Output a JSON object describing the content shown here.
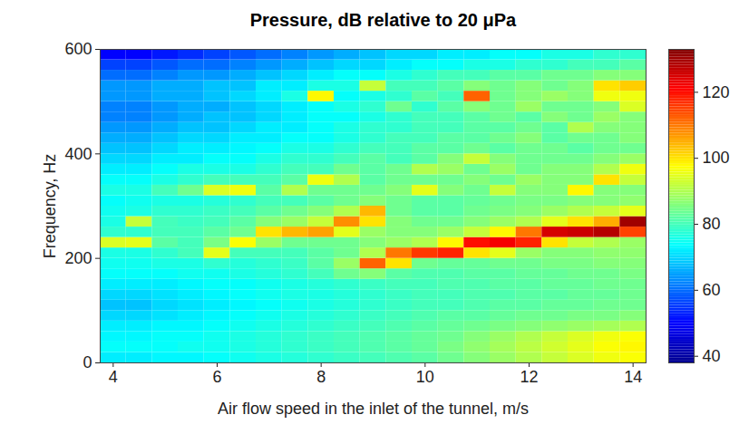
{
  "chart_data": {
    "type": "heatmap",
    "title": "Pressure, dB relative to 20 μPa",
    "x_label": "Air flow speed in the inlet of the tunnel, m/s",
    "y_label": "Frequency, Hz",
    "x": [
      4,
      4.5,
      5,
      5.5,
      6,
      6.5,
      7,
      7.5,
      8,
      8.5,
      9,
      9.5,
      10,
      10.5,
      11,
      11.5,
      12,
      12.5,
      13,
      13.5,
      14
    ],
    "y": [
      10,
      30,
      50,
      70,
      90,
      110,
      130,
      150,
      170,
      190,
      210,
      230,
      250,
      270,
      290,
      310,
      330,
      350,
      370,
      390,
      410,
      430,
      450,
      470,
      490,
      510,
      530,
      550,
      570,
      590
    ],
    "z": [
      [
        72,
        72,
        73,
        73,
        74,
        75,
        76,
        77,
        78,
        79,
        80,
        81,
        82,
        84,
        86,
        88,
        90,
        92,
        94,
        96,
        97
      ],
      [
        74,
        74,
        74,
        75,
        75,
        76,
        77,
        78,
        79,
        80,
        81,
        82,
        83,
        85,
        87,
        89,
        91,
        93,
        95,
        97,
        98
      ],
      [
        73,
        73,
        74,
        74,
        75,
        76,
        77,
        78,
        79,
        80,
        81,
        82,
        83,
        84,
        86,
        88,
        90,
        92,
        94,
        96,
        97
      ],
      [
        72,
        72,
        73,
        73,
        74,
        75,
        76,
        77,
        78,
        79,
        80,
        81,
        82,
        83,
        84,
        85,
        86,
        87,
        88,
        89,
        90
      ],
      [
        70,
        70,
        71,
        72,
        73,
        74,
        75,
        76,
        77,
        78,
        79,
        80,
        81,
        82,
        82,
        83,
        84,
        84,
        85,
        85,
        86
      ],
      [
        68,
        68,
        70,
        71,
        72,
        73,
        74,
        75,
        76,
        77,
        78,
        79,
        80,
        80,
        81,
        82,
        82,
        83,
        83,
        84,
        84
      ],
      [
        70,
        70,
        71,
        72,
        73,
        74,
        75,
        76,
        76,
        77,
        78,
        79,
        80,
        80,
        81,
        81,
        82,
        82,
        83,
        83,
        84
      ],
      [
        72,
        72,
        72,
        73,
        74,
        74,
        75,
        76,
        77,
        78,
        79,
        80,
        80,
        81,
        81,
        82,
        82,
        83,
        83,
        84,
        84
      ],
      [
        74,
        74,
        74,
        75,
        75,
        76,
        77,
        78,
        80,
        84,
        86,
        82,
        81,
        81,
        82,
        82,
        83,
        83,
        84,
        84,
        85
      ],
      [
        75,
        75,
        76,
        76,
        78,
        77,
        78,
        79,
        82,
        88,
        112,
        100,
        84,
        83,
        83,
        84,
        84,
        85,
        85,
        86,
        86
      ],
      [
        76,
        76,
        78,
        80,
        95,
        80,
        80,
        80,
        82,
        84,
        90,
        110,
        116,
        118,
        100,
        95,
        88,
        86,
        86,
        87,
        87
      ],
      [
        94,
        95,
        82,
        80,
        85,
        97,
        88,
        84,
        84,
        84,
        86,
        88,
        90,
        98,
        120,
        122,
        118,
        100,
        92,
        90,
        88
      ],
      [
        78,
        78,
        80,
        80,
        82,
        84,
        100,
        104,
        106,
        95,
        88,
        86,
        86,
        88,
        92,
        98,
        110,
        125,
        126,
        128,
        115
      ],
      [
        76,
        92,
        80,
        79,
        80,
        82,
        86,
        88,
        92,
        108,
        100,
        86,
        84,
        84,
        86,
        88,
        90,
        95,
        100,
        105,
        130
      ],
      [
        75,
        76,
        78,
        78,
        79,
        80,
        82,
        84,
        86,
        90,
        104,
        84,
        82,
        82,
        84,
        85,
        86,
        88,
        90,
        92,
        95
      ],
      [
        74,
        75,
        76,
        76,
        77,
        78,
        80,
        80,
        82,
        84,
        86,
        84,
        82,
        82,
        83,
        84,
        85,
        85,
        86,
        86,
        87
      ],
      [
        76,
        76,
        80,
        84,
        94,
        96,
        82,
        90,
        84,
        84,
        84,
        86,
        95,
        86,
        84,
        92,
        86,
        86,
        98,
        86,
        86
      ],
      [
        74,
        74,
        76,
        78,
        80,
        80,
        80,
        82,
        96,
        90,
        82,
        84,
        84,
        84,
        86,
        84,
        88,
        86,
        86,
        100,
        92
      ],
      [
        72,
        72,
        74,
        76,
        76,
        76,
        78,
        80,
        80,
        84,
        82,
        84,
        90,
        88,
        84,
        88,
        84,
        86,
        86,
        90,
        96
      ],
      [
        70,
        70,
        72,
        72,
        74,
        74,
        76,
        78,
        78,
        80,
        82,
        80,
        82,
        86,
        92,
        86,
        84,
        84,
        84,
        86,
        88
      ],
      [
        68,
        68,
        70,
        72,
        72,
        73,
        74,
        76,
        76,
        78,
        80,
        80,
        82,
        82,
        84,
        82,
        84,
        84,
        82,
        84,
        84
      ],
      [
        66,
        66,
        68,
        70,
        70,
        72,
        72,
        74,
        74,
        76,
        78,
        80,
        80,
        82,
        82,
        84,
        86,
        82,
        84,
        84,
        86
      ],
      [
        64,
        64,
        66,
        68,
        68,
        70,
        72,
        72,
        74,
        76,
        78,
        78,
        80,
        80,
        82,
        82,
        84,
        82,
        90,
        86,
        86
      ],
      [
        62,
        62,
        64,
        66,
        68,
        68,
        70,
        72,
        74,
        74,
        76,
        78,
        80,
        80,
        82,
        84,
        82,
        86,
        84,
        88,
        86
      ],
      [
        62,
        62,
        64,
        66,
        66,
        68,
        70,
        72,
        74,
        76,
        78,
        84,
        78,
        82,
        86,
        84,
        88,
        84,
        84,
        86,
        94
      ],
      [
        64,
        64,
        66,
        66,
        68,
        70,
        72,
        76,
        98,
        74,
        76,
        78,
        82,
        80,
        112,
        84,
        86,
        88,
        86,
        96,
        96
      ],
      [
        64,
        64,
        66,
        66,
        68,
        68,
        72,
        72,
        76,
        76,
        92,
        80,
        80,
        82,
        86,
        84,
        86,
        84,
        86,
        100,
        102
      ],
      [
        60,
        60,
        62,
        64,
        64,
        66,
        68,
        70,
        72,
        74,
        74,
        76,
        78,
        80,
        80,
        82,
        82,
        84,
        84,
        86,
        86
      ],
      [
        56,
        56,
        58,
        60,
        60,
        62,
        64,
        66,
        68,
        70,
        70,
        72,
        74,
        74,
        76,
        76,
        78,
        78,
        80,
        80,
        82
      ],
      [
        50,
        50,
        52,
        54,
        56,
        58,
        60,
        62,
        64,
        66,
        68,
        70,
        70,
        72,
        72,
        74,
        74,
        76,
        76,
        78,
        78
      ]
    ],
    "xlim": [
      3.75,
      14.25
    ],
    "xticks": [
      4,
      6,
      8,
      10,
      12,
      14
    ],
    "ylim": [
      0,
      600
    ],
    "yticks": [
      0,
      200,
      400,
      600
    ],
    "colorbar_lim": [
      38,
      133
    ],
    "colorbar_ticks": [
      40,
      60,
      80,
      100,
      120
    ]
  }
}
